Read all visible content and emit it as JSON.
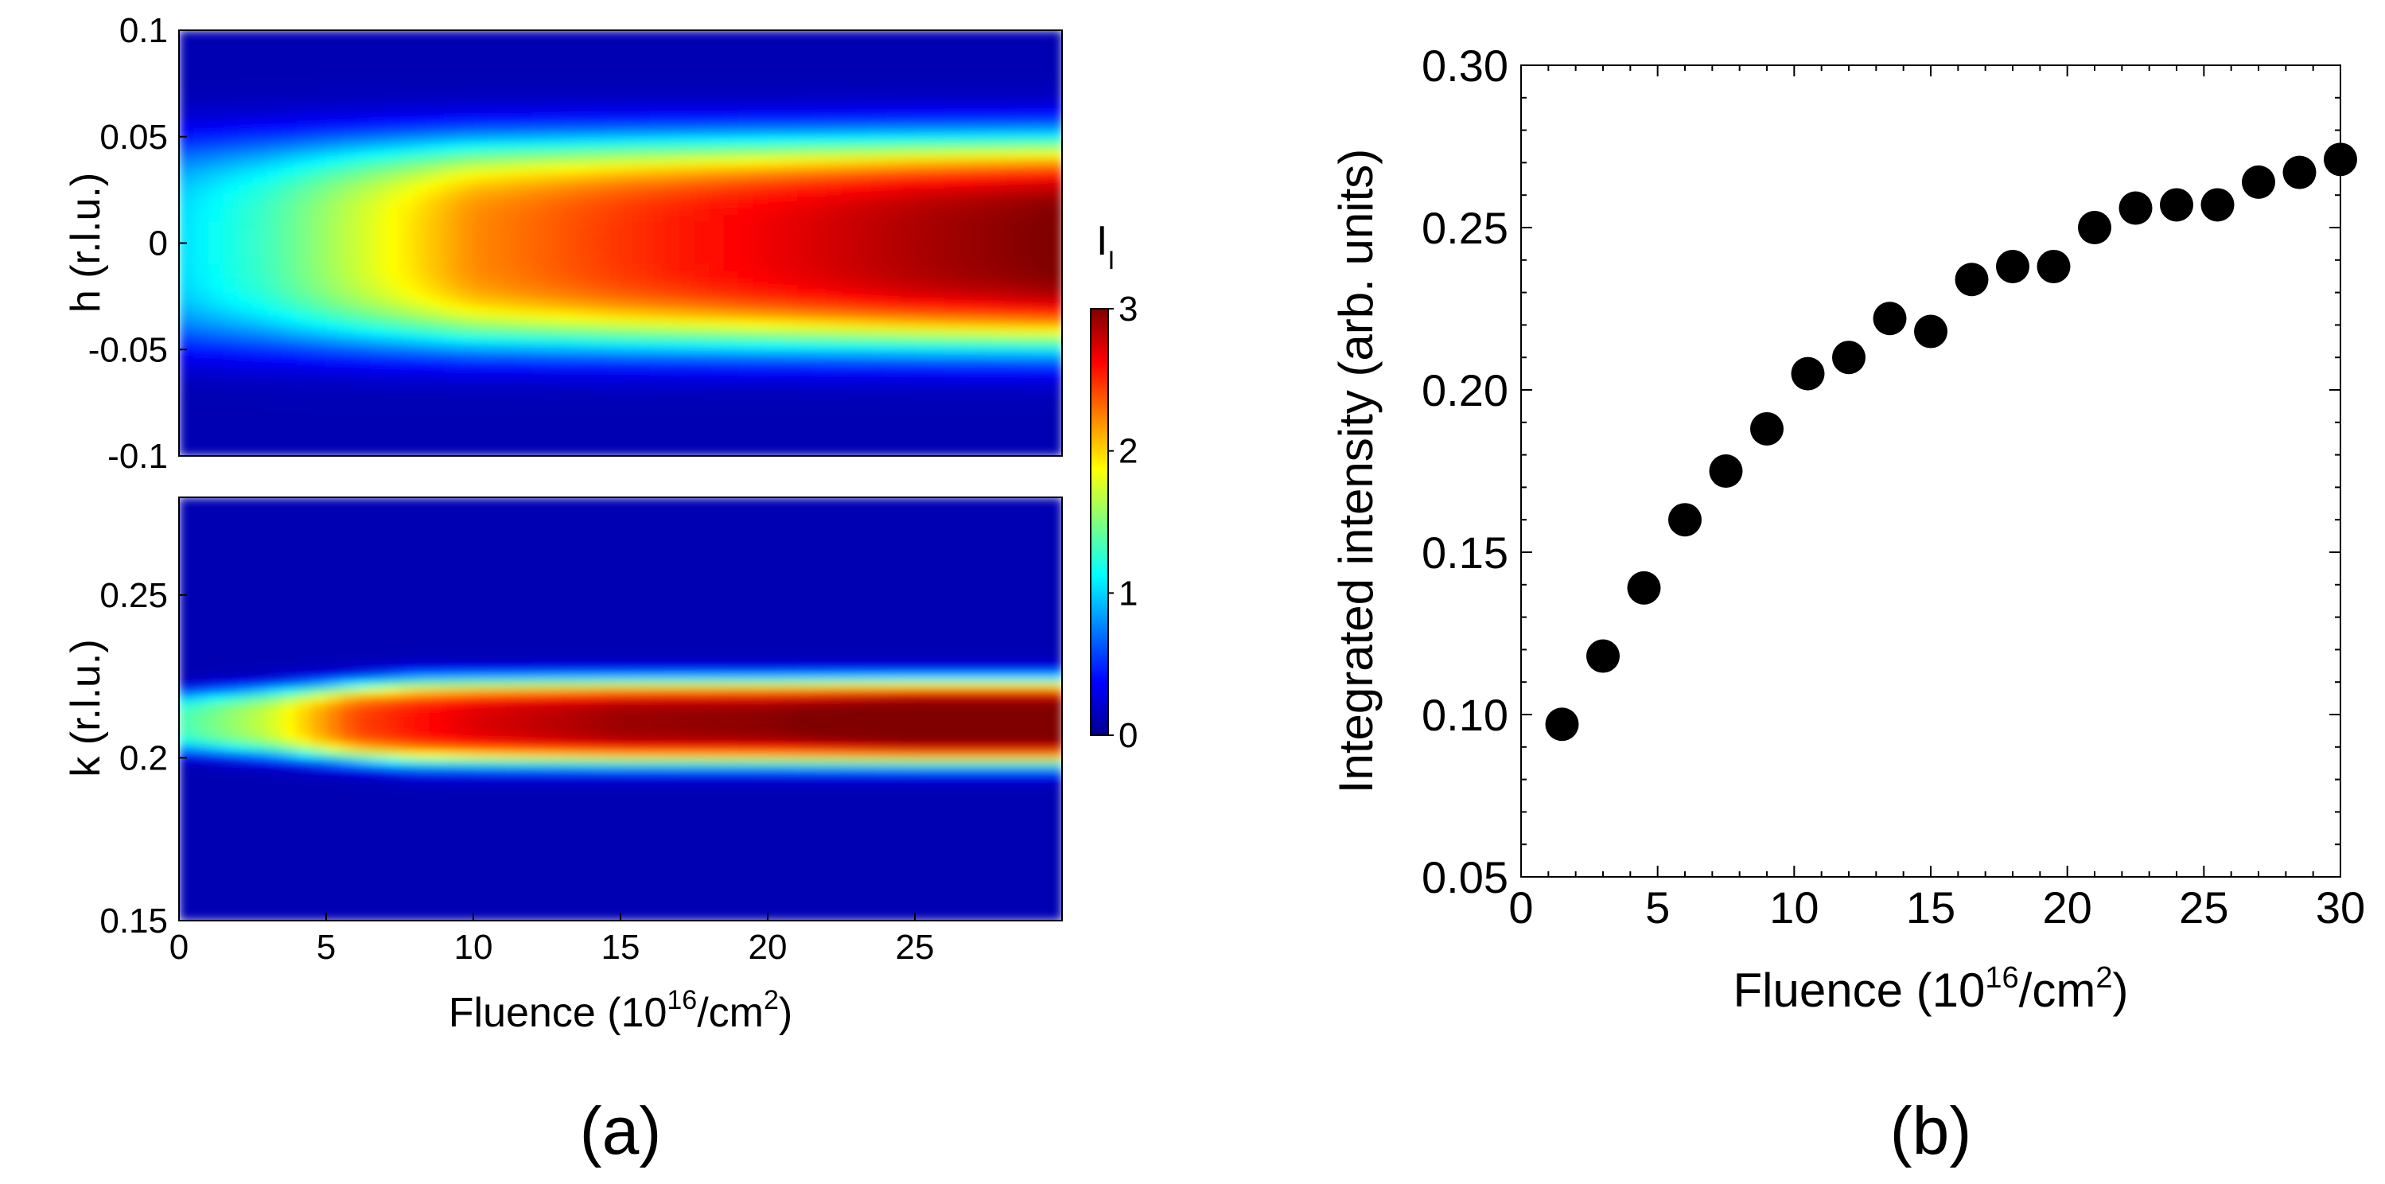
{
  "chart_data": [
    {
      "type": "heatmap",
      "panel_label": "(a)",
      "xlabel": {
        "prefix": "Fluence (10",
        "sup": "16",
        "middle": "/cm",
        "sup2": "2",
        "suffix": ")"
      },
      "x_ticks": [
        "0",
        "5",
        "10",
        "15",
        "20",
        "25"
      ],
      "xlim": [
        0,
        30
      ],
      "colorbar": {
        "label": "I",
        "label_sub": "I",
        "ticks": [
          "0",
          "1",
          "2",
          "3"
        ],
        "range": [
          0,
          3
        ],
        "colormap": "jet"
      },
      "panels": [
        {
          "name": "top",
          "ylabel": "h (r.l.u.)",
          "y_ticks": [
            "0.1",
            "0.05",
            "0",
            "-0.05",
            "-0.1"
          ],
          "ylim": [
            -0.1,
            0.1
          ],
          "peak_center": 0.0,
          "peak_halfwidth": 0.045,
          "intensity_vs_fluence": [
            [
              0,
              0.9
            ],
            [
              3,
              1.2
            ],
            [
              6,
              1.6
            ],
            [
              10,
              2.1
            ],
            [
              15,
              2.35
            ],
            [
              20,
              2.55
            ],
            [
              25,
              2.75
            ],
            [
              30,
              2.9
            ]
          ]
        },
        {
          "name": "bottom",
          "ylabel": "k (r.l.u.)",
          "y_ticks": [
            "0.25",
            "0.2",
            "0.15"
          ],
          "ylim": [
            0.15,
            0.28
          ],
          "peak_center": 0.211,
          "peak_halfwidth": 0.012,
          "intensity_vs_fluence": [
            [
              0,
              1.2
            ],
            [
              3,
              1.6
            ],
            [
              6,
              2.3
            ],
            [
              10,
              2.6
            ],
            [
              15,
              2.8
            ],
            [
              20,
              2.85
            ],
            [
              25,
              3.0
            ],
            [
              30,
              3.0
            ]
          ]
        }
      ]
    },
    {
      "type": "scatter",
      "panel_label": "(b)",
      "xlabel": {
        "prefix": "Fluence (10",
        "sup": "16",
        "middle": "/cm",
        "sup2": "2",
        "suffix": ")"
      },
      "ylabel": "Integrated intensity (arb. units)",
      "xlim": [
        0,
        30
      ],
      "ylim": [
        0.05,
        0.3
      ],
      "x_ticks": [
        "0",
        "5",
        "10",
        "15",
        "20",
        "25",
        "30"
      ],
      "y_ticks": [
        "0.05",
        "0.10",
        "0.15",
        "0.20",
        "0.25",
        "0.30"
      ],
      "x": [
        1.5,
        3,
        4.5,
        6,
        7.5,
        9,
        10.5,
        12,
        13.5,
        15,
        16.5,
        18,
        19.5,
        21,
        22.5,
        24,
        25.5,
        27,
        28.5,
        30
      ],
      "y": [
        0.097,
        0.118,
        0.139,
        0.16,
        0.175,
        0.188,
        0.205,
        0.21,
        0.222,
        0.218,
        0.234,
        0.238,
        0.238,
        0.25,
        0.256,
        0.257,
        0.257,
        0.264,
        0.267,
        0.271
      ]
    }
  ]
}
